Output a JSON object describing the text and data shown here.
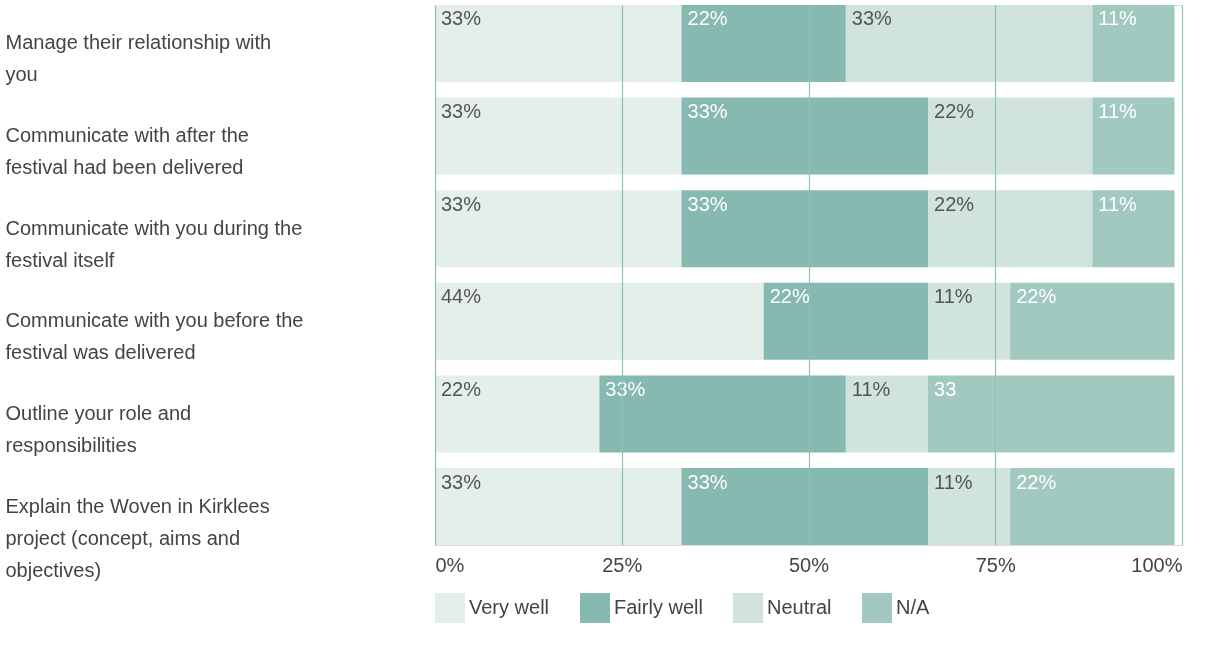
{
  "chart_data": {
    "type": "bar",
    "orientation": "horizontal",
    "stacked": true,
    "categories": [
      "Manage their relationship with you",
      "Communicate with after the festival had been delivered",
      "Communicate with you during the festival itself",
      "Communicate with you before the festival was delivered",
      "Outline your role and responsibilities",
      "Explain the Woven in Kirklees project (concept, aims and objectives)"
    ],
    "series": [
      {
        "name": "Very well",
        "color": "#e4eeeb",
        "values": [
          33,
          33,
          33,
          44,
          22,
          33
        ],
        "value_labels": [
          "33%",
          "33%",
          "33%",
          "44%",
          "22%",
          "33%"
        ]
      },
      {
        "name": "Fairly well",
        "color": "#86b9b0",
        "values": [
          22,
          33,
          33,
          22,
          33,
          33
        ],
        "value_labels": [
          "22%",
          "33%",
          "33%",
          "22%",
          "33%",
          "33%"
        ]
      },
      {
        "name": "Neutral",
        "color": "#d0e3de",
        "values": [
          33,
          22,
          22,
          11,
          11,
          11
        ],
        "value_labels": [
          "33%",
          "22%",
          "22%",
          "11%",
          "11%",
          "11%"
        ]
      },
      {
        "name": "N/A",
        "color": "#a2c9bf",
        "values": [
          11,
          11,
          11,
          22,
          33,
          22
        ],
        "value_labels": [
          "11%",
          "11%",
          "11%",
          "22%",
          "33",
          "22%"
        ]
      }
    ],
    "xlim": [
      0,
      100
    ],
    "xticks": [
      {
        "value": 0,
        "label": "0%"
      },
      {
        "value": 25,
        "label": "25%"
      },
      {
        "value": 50,
        "label": "50%"
      },
      {
        "value": 75,
        "label": "75%"
      },
      {
        "value": 100,
        "label": "100%"
      }
    ],
    "grid": "x",
    "legend": "bottom"
  }
}
